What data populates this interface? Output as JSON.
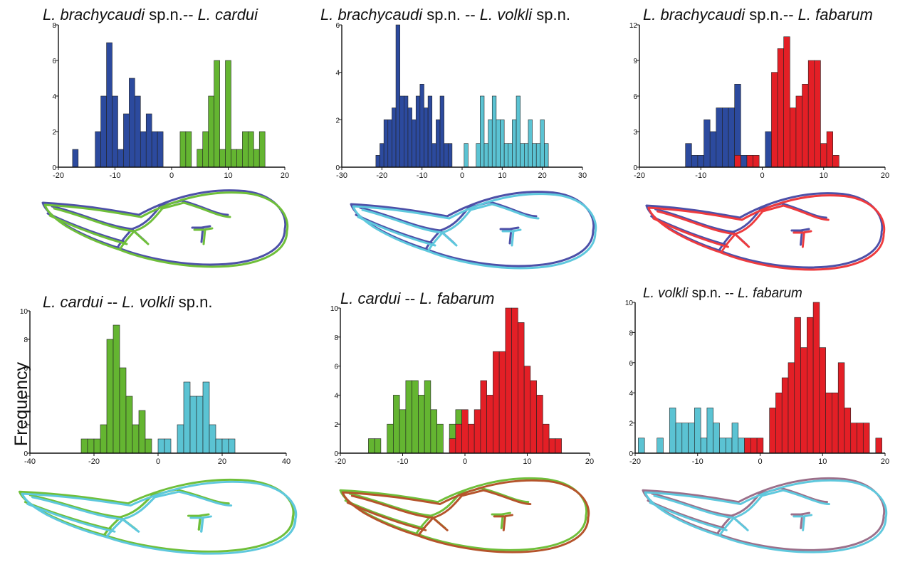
{
  "figure": {
    "ylabel": "Frequency",
    "colors": {
      "brachycaudi": "#2c4a9e",
      "cardui": "#64b531",
      "volkli": "#5bc3d3",
      "fabarum": "#e31f26",
      "bar_stroke": "#222222",
      "outline_brachycaudi": "#4d50a8",
      "outline_cardui": "#6fbf3a",
      "outline_volkli": "#5ec8dd",
      "outline_fabarum": "#ee3b3e",
      "outline_cardui_fab_overlap": "#b5542b",
      "outline_volkli_fab_overlap": "#9b6f8a"
    }
  },
  "chart_data": [
    {
      "type": "bar",
      "title_parts": [
        {
          "text": "L. brachycaudi",
          "italic": true
        },
        {
          "text": " sp.n.-- ",
          "italic": false
        },
        {
          "text": "L. cardui",
          "italic": true
        }
      ],
      "xlim": [
        -20,
        20
      ],
      "ylim": [
        0,
        8
      ],
      "xticks": [
        -20,
        -10,
        0,
        10,
        20
      ],
      "yticks": [
        0,
        2,
        4,
        6,
        8
      ],
      "series": [
        {
          "name": "L. brachycaudi",
          "color_key": "brachycaudi",
          "x": [
            -17,
            -13,
            -12,
            -11,
            -10,
            -9,
            -8,
            -7,
            -6,
            -5,
            -4,
            -3,
            -2,
            5
          ],
          "values": [
            1,
            2,
            4,
            7,
            4,
            1,
            3,
            5,
            4,
            2,
            3,
            2,
            2,
            1
          ]
        },
        {
          "name": "L. cardui",
          "color_key": "cardui",
          "x": [
            2,
            3,
            5,
            6,
            7,
            8,
            9,
            10,
            11,
            12,
            13,
            14,
            15,
            16
          ],
          "values": [
            2,
            2,
            1,
            2,
            4,
            6,
            1,
            6,
            1,
            1,
            2,
            2,
            1,
            2
          ]
        }
      ],
      "wing_colors": [
        "outline_brachycaudi",
        "outline_cardui"
      ]
    },
    {
      "type": "bar",
      "title_parts": [
        {
          "text": "L. brachycaudi",
          "italic": true
        },
        {
          "text": " sp.n. -- ",
          "italic": false
        },
        {
          "text": "L. volkli",
          "italic": true
        },
        {
          "text": " sp.n.",
          "italic": false
        }
      ],
      "xlim": [
        -30,
        30
      ],
      "ylim": [
        0,
        6
      ],
      "xticks": [
        -30,
        -20,
        -10,
        0,
        10,
        20,
        30
      ],
      "yticks": [
        0,
        2,
        4,
        6
      ],
      "series": [
        {
          "name": "L. brachycaudi",
          "color_key": "brachycaudi",
          "x": [
            -21,
            -20,
            -19,
            -18,
            -17,
            -16,
            -15,
            -14,
            -13,
            -12,
            -11,
            -10,
            -9,
            -8,
            -7,
            -6,
            -5,
            -4,
            -3
          ],
          "values": [
            0.5,
            1,
            2,
            2,
            2.5,
            6,
            3,
            3,
            2.5,
            2,
            3,
            3.5,
            2.5,
            3,
            1,
            2,
            3,
            1,
            1
          ]
        },
        {
          "name": "L. volkli",
          "color_key": "volkli",
          "x": [
            1,
            4,
            5,
            6,
            7,
            8,
            9,
            10,
            11,
            12,
            13,
            14,
            15,
            16,
            17,
            18,
            19,
            20,
            21
          ],
          "values": [
            1,
            1,
            3,
            1,
            2,
            3,
            2,
            2,
            1,
            1,
            2,
            3,
            1,
            1,
            2,
            1,
            1,
            2,
            1
          ]
        }
      ],
      "wing_colors": [
        "outline_brachycaudi",
        "outline_volkli"
      ]
    },
    {
      "type": "bar",
      "title_parts": [
        {
          "text": "L. brachycaudi",
          "italic": true
        },
        {
          "text": " sp.n.-- ",
          "italic": false
        },
        {
          "text": "L. fabarum",
          "italic": true
        }
      ],
      "xlim": [
        -20,
        20
      ],
      "ylim": [
        0,
        12
      ],
      "xticks": [
        -20,
        -10,
        0,
        10,
        20
      ],
      "yticks": [
        0,
        3,
        6,
        9,
        12
      ],
      "series": [
        {
          "name": "L. brachycaudi",
          "color_key": "brachycaudi",
          "x": [
            -12,
            -11,
            -10,
            -9,
            -8,
            -7,
            -6,
            -5,
            -4,
            -3,
            -2,
            1
          ],
          "values": [
            2,
            1,
            1,
            4,
            3,
            5,
            5,
            5,
            7,
            1,
            1,
            3
          ]
        },
        {
          "name": "L. fabarum",
          "color_key": "fabarum",
          "x": [
            -4,
            -2,
            -1,
            2,
            3,
            4,
            5,
            6,
            7,
            8,
            9,
            10,
            11,
            12
          ],
          "values": [
            1,
            1,
            1,
            8,
            10,
            11,
            5,
            6,
            7,
            9,
            9,
            2,
            3,
            1
          ]
        }
      ],
      "wing_colors": [
        "outline_brachycaudi",
        "outline_fabarum"
      ]
    },
    {
      "type": "bar",
      "title_parts": [
        {
          "text": "L. cardui",
          "italic": true
        },
        {
          "text": " -- ",
          "italic": false
        },
        {
          "text": "L. volkli",
          "italic": true
        },
        {
          "text": " sp.n.",
          "italic": false
        }
      ],
      "xlim": [
        -40,
        40
      ],
      "ylim": [
        0,
        10
      ],
      "xticks": [
        -40,
        -20,
        0,
        20,
        40
      ],
      "yticks": [
        0,
        2,
        4,
        6,
        8,
        10
      ],
      "series": [
        {
          "name": "L. cardui",
          "color_key": "cardui",
          "x": [
            -23,
            -21,
            -19,
            -17,
            -15,
            -13,
            -11,
            -9,
            -7,
            -5,
            -3
          ],
          "values": [
            1,
            1,
            1,
            2,
            8,
            9,
            6,
            4,
            2,
            3,
            1
          ]
        },
        {
          "name": "L. volkli",
          "color_key": "volkli",
          "x": [
            1,
            3,
            7,
            9,
            11,
            13,
            15,
            17,
            19,
            21,
            23
          ],
          "values": [
            1,
            1,
            2,
            5,
            4,
            4,
            5,
            2,
            1,
            1,
            1
          ]
        }
      ],
      "wing_colors": [
        "outline_cardui",
        "outline_volkli"
      ]
    },
    {
      "type": "bar",
      "title_parts": [
        {
          "text": "L. cardui",
          "italic": true
        },
        {
          "text": " -- ",
          "italic": false
        },
        {
          "text": "L. fabarum",
          "italic": true
        }
      ],
      "xlim": [
        -20,
        20
      ],
      "ylim": [
        0,
        10
      ],
      "xticks": [
        -20,
        -10,
        0,
        10,
        20
      ],
      "yticks": [
        0,
        2,
        4,
        6,
        8,
        10
      ],
      "series": [
        {
          "name": "L. cardui",
          "color_key": "cardui",
          "x": [
            -15,
            -14,
            -12,
            -11,
            -10,
            -9,
            -8,
            -7,
            -6,
            -5,
            -4,
            -2,
            -1
          ],
          "values": [
            1,
            1,
            2,
            4,
            3,
            5,
            5,
            4,
            5,
            3,
            2,
            2,
            3
          ]
        },
        {
          "name": "L. fabarum",
          "color_key": "fabarum",
          "x": [
            -2,
            -1,
            0,
            1,
            2,
            3,
            4,
            5,
            6,
            7,
            8,
            9,
            10,
            11,
            12,
            13,
            14,
            15
          ],
          "values": [
            1,
            2,
            3,
            2,
            3,
            5,
            4,
            7,
            7,
            10,
            10,
            9,
            6,
            5,
            4,
            2,
            1,
            1
          ]
        }
      ],
      "wing_colors": [
        "outline_cardui",
        "outline_cardui_fab_overlap"
      ]
    },
    {
      "type": "bar",
      "title_parts": [
        {
          "text": "L. volkli",
          "italic": true
        },
        {
          "text": " sp.n. -- ",
          "italic": false
        },
        {
          "text": "L. fabarum",
          "italic": true
        }
      ],
      "xlim": [
        -20,
        20
      ],
      "ylim": [
        0,
        10
      ],
      "xticks": [
        -20,
        -10,
        0,
        10,
        20
      ],
      "yticks": [
        0,
        2,
        4,
        6,
        8,
        10
      ],
      "series": [
        {
          "name": "L. volkli",
          "color_key": "volkli",
          "x": [
            -19,
            -16,
            -14,
            -13,
            -12,
            -11,
            -10,
            -9,
            -8,
            -7,
            -6,
            -5,
            -4,
            -3
          ],
          "values": [
            1,
            1,
            3,
            2,
            2,
            2,
            3,
            1,
            3,
            2,
            1,
            1,
            2,
            1
          ]
        },
        {
          "name": "L. fabarum",
          "color_key": "fabarum",
          "x": [
            -2,
            -1,
            0,
            2,
            3,
            4,
            5,
            6,
            7,
            8,
            9,
            10,
            11,
            12,
            13,
            14,
            15,
            16,
            17,
            19
          ],
          "values": [
            1,
            1,
            1,
            3,
            4,
            5,
            6,
            9,
            7,
            9,
            10,
            7,
            4,
            4,
            6,
            3,
            2,
            2,
            2,
            1
          ]
        }
      ],
      "wing_colors": [
        "outline_volkli_fab_overlap",
        "outline_volkli"
      ]
    }
  ]
}
